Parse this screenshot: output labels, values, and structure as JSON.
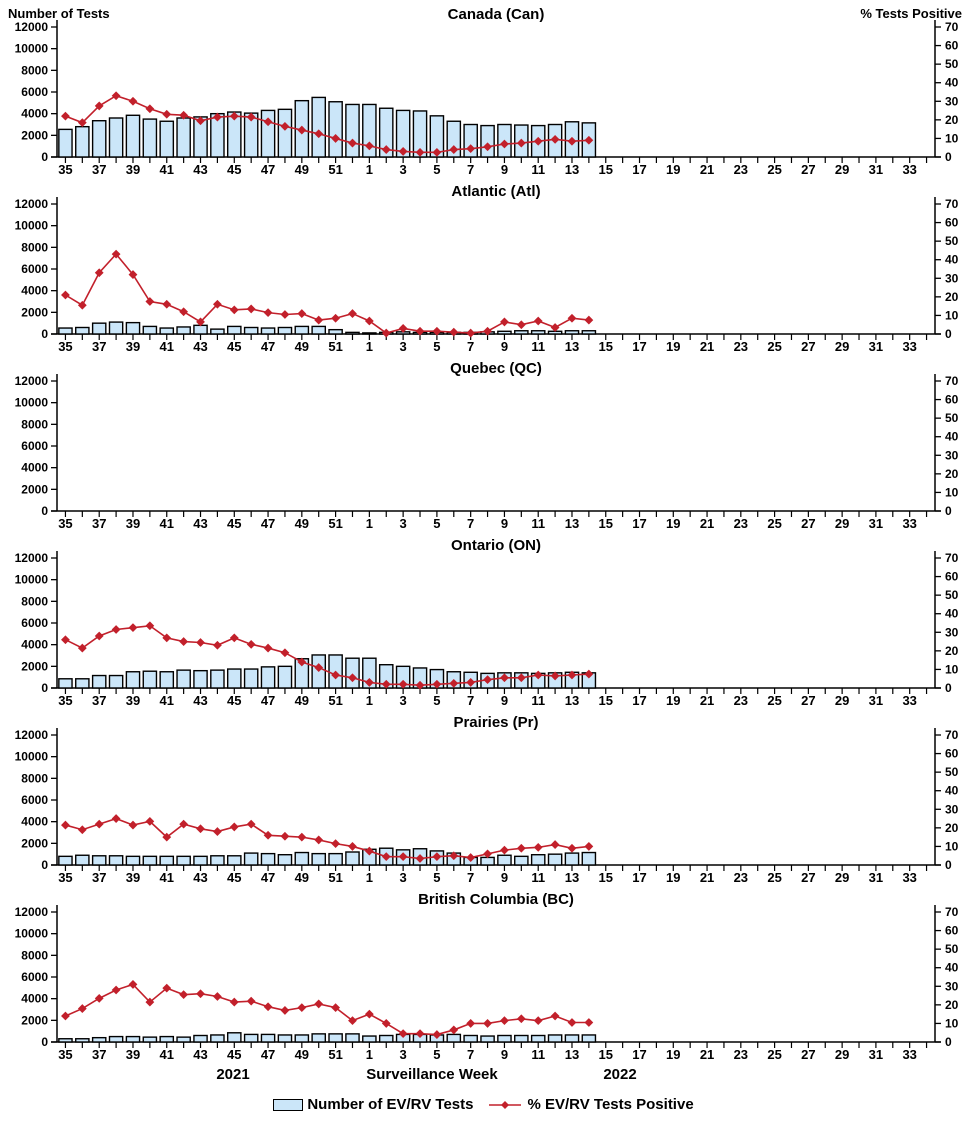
{
  "header": {
    "left_axis_label": "Number of Tests",
    "right_axis_label": "% Tests Positive"
  },
  "footer": {
    "year_left": "2021",
    "xlabel": "Surveillance Week",
    "year_right": "2022"
  },
  "legend": {
    "tests_label": "Number of EV/RV Tests",
    "pct_label": "% EV/RV Tests Positive"
  },
  "colors": {
    "bar_fill": "#CBE6F9",
    "bar_border": "#000000",
    "line": "#C2202B",
    "axis": "#000000"
  },
  "chart_data": {
    "type": "bar",
    "subtype": "combo-bar-line-small-multiples",
    "xlabel": "Surveillance Week",
    "x_year_labels": [
      "2021",
      "2022"
    ],
    "x_weeks": [
      35,
      36,
      37,
      38,
      39,
      40,
      41,
      42,
      43,
      44,
      45,
      46,
      47,
      48,
      49,
      50,
      51,
      52,
      1,
      2,
      3,
      4,
      5,
      6,
      7,
      8,
      9,
      10,
      11,
      12,
      13,
      14,
      15,
      16,
      17,
      18,
      19,
      20,
      21,
      22,
      23,
      24,
      25,
      26,
      27,
      28,
      29,
      30,
      31,
      32,
      33,
      34
    ],
    "x_tick_labels": [
      35,
      37,
      39,
      41,
      43,
      45,
      47,
      49,
      51,
      1,
      3,
      5,
      7,
      9,
      11,
      13,
      15,
      17,
      19,
      21,
      23,
      25,
      27,
      29,
      31,
      33
    ],
    "data_weeks": [
      35,
      36,
      37,
      38,
      39,
      40,
      41,
      42,
      43,
      44,
      45,
      46,
      47,
      48,
      49,
      50,
      51,
      52,
      1,
      2,
      3,
      4,
      5,
      6,
      7,
      8,
      9,
      10,
      11,
      12,
      13,
      14
    ],
    "left_axis": {
      "label": "Number of Tests",
      "ylim": [
        0,
        12000
      ],
      "ticks": [
        0,
        2000,
        4000,
        6000,
        8000,
        10000,
        12000
      ]
    },
    "right_axis": {
      "label": "% Tests Positive",
      "ylim": [
        0,
        70
      ],
      "ticks": [
        0,
        10,
        20,
        30,
        40,
        50,
        60,
        70
      ]
    },
    "series_names": [
      "Number of EV/RV Tests",
      "% EV/RV Tests Positive"
    ],
    "panels": [
      {
        "title": "Canada (Can)",
        "tests": [
          2550,
          2800,
          3350,
          3600,
          3850,
          3500,
          3300,
          3600,
          3700,
          4000,
          4150,
          4050,
          4300,
          4400,
          5200,
          5500,
          5100,
          4850,
          4850,
          4500,
          4300,
          4250,
          3800,
          3300,
          3000,
          2900,
          3000,
          2950,
          2900,
          3000,
          3250,
          3150
        ],
        "pct_positive": [
          22,
          18.5,
          27.5,
          33,
          30,
          26,
          23,
          22.5,
          19.5,
          21.5,
          22,
          21.5,
          19,
          16.5,
          14.5,
          12.5,
          10,
          7.5,
          6,
          4,
          3,
          2.5,
          2.5,
          4,
          4.5,
          5.5,
          7,
          7.5,
          8.5,
          9.5,
          8.5,
          9
        ]
      },
      {
        "title": "Atlantic (Atl)",
        "tests": [
          550,
          600,
          1000,
          1100,
          1050,
          700,
          550,
          650,
          800,
          450,
          700,
          600,
          550,
          600,
          700,
          700,
          400,
          150,
          100,
          150,
          200,
          150,
          150,
          150,
          150,
          200,
          250,
          300,
          300,
          250,
          300,
          300
        ],
        "pct_positive": [
          21,
          15.5,
          33,
          43,
          32,
          17.5,
          16,
          12,
          6.5,
          16,
          13,
          13.5,
          11.5,
          10.5,
          11,
          7.5,
          8.5,
          11,
          7,
          0.5,
          3,
          1.5,
          1.5,
          1,
          0.5,
          1.5,
          6.5,
          5,
          7,
          3.5,
          8.5,
          7.5
        ]
      },
      {
        "title": "Quebec (QC)",
        "tests": [],
        "pct_positive": []
      },
      {
        "title": "Ontario (ON)",
        "tests": [
          850,
          850,
          1150,
          1150,
          1500,
          1550,
          1500,
          1650,
          1600,
          1650,
          1750,
          1750,
          1950,
          2000,
          2700,
          3050,
          3050,
          2750,
          2750,
          2150,
          2000,
          1850,
          1700,
          1500,
          1450,
          1350,
          1400,
          1400,
          1350,
          1400,
          1450,
          1400
        ],
        "pct_positive": [
          26,
          21.5,
          28,
          31.5,
          32.5,
          33.5,
          27,
          25,
          24.5,
          23,
          27,
          23.5,
          21.5,
          19,
          14,
          11,
          7,
          5.5,
          3,
          2,
          2,
          1.5,
          2,
          2.5,
          3,
          4.5,
          5.5,
          5.5,
          7,
          6.5,
          7,
          7.5
        ]
      },
      {
        "title": "Prairies (Pr)",
        "tests": [
          800,
          900,
          850,
          850,
          800,
          800,
          800,
          800,
          800,
          850,
          850,
          1100,
          1050,
          950,
          1150,
          1050,
          1050,
          1200,
          1450,
          1550,
          1400,
          1500,
          1300,
          1100,
          700,
          700,
          900,
          800,
          950,
          1000,
          1100,
          1150
        ],
        "pct_positive": [
          21.5,
          19,
          22,
          25,
          21.5,
          23.5,
          15,
          22,
          19.5,
          18,
          20.5,
          22,
          16,
          15.5,
          15,
          13.5,
          11.5,
          10,
          7.5,
          4.5,
          4.5,
          3.5,
          4.5,
          5,
          4,
          6,
          8,
          9,
          9.5,
          11,
          9,
          10
        ]
      },
      {
        "title": "British Columbia (BC)",
        "tests": [
          300,
          300,
          400,
          500,
          500,
          450,
          500,
          450,
          600,
          650,
          850,
          700,
          700,
          650,
          650,
          750,
          750,
          750,
          550,
          600,
          700,
          700,
          650,
          700,
          600,
          550,
          600,
          600,
          600,
          650,
          650,
          650
        ],
        "pct_positive": [
          14,
          18,
          23.5,
          28,
          31,
          21.5,
          29,
          25.5,
          26,
          24.5,
          21.5,
          22,
          19,
          17,
          18.5,
          20.5,
          18.5,
          11.5,
          15,
          10,
          4.5,
          4.5,
          4,
          6.5,
          10,
          10,
          11.5,
          12.5,
          11.5,
          14,
          10.5,
          10.5
        ]
      }
    ]
  }
}
